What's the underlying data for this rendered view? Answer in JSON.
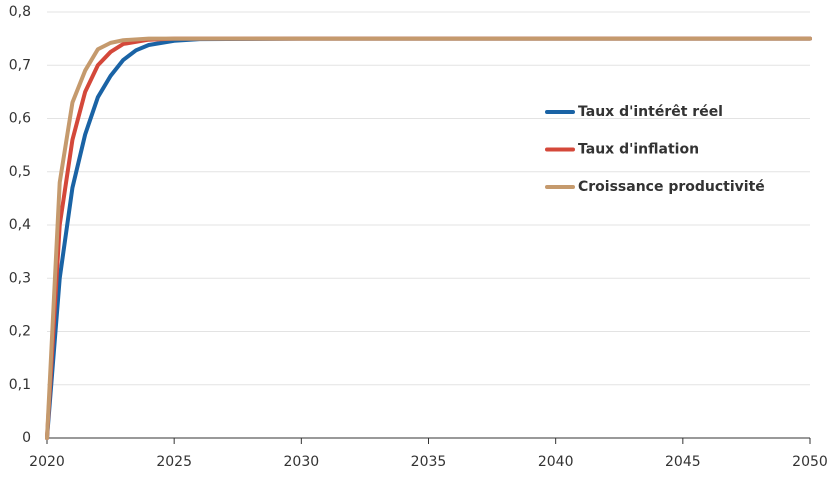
{
  "chart_data": {
    "type": "line",
    "series": [
      {
        "name": "Taux d'intérêt réel",
        "color": "#1a63a5",
        "x": [
          2020,
          2020.5,
          2021,
          2021.5,
          2022,
          2022.5,
          2023,
          2023.5,
          2024,
          2025,
          2026,
          2030,
          2050
        ],
        "values": [
          0,
          0.3,
          0.47,
          0.57,
          0.64,
          0.68,
          0.71,
          0.728,
          0.738,
          0.746,
          0.749,
          0.75,
          0.75
        ]
      },
      {
        "name": "Taux d'inflation",
        "color": "#d4483a",
        "x": [
          2020,
          2020.5,
          2021,
          2021.5,
          2022,
          2022.5,
          2023,
          2024,
          2025,
          2030,
          2050
        ],
        "values": [
          0,
          0.4,
          0.56,
          0.65,
          0.7,
          0.725,
          0.74,
          0.748,
          0.75,
          0.75,
          0.75
        ]
      },
      {
        "name": "Croissance productivité",
        "color": "#c59a6d",
        "x": [
          2020,
          2020.5,
          2021,
          2021.5,
          2022,
          2022.5,
          2023,
          2024,
          2030,
          2050
        ],
        "values": [
          0,
          0.48,
          0.63,
          0.69,
          0.73,
          0.742,
          0.747,
          0.75,
          0.75,
          0.75
        ]
      }
    ],
    "xlim": [
      2020,
      2050
    ],
    "xticks": [
      2020,
      2025,
      2030,
      2035,
      2040,
      2045,
      2050
    ],
    "ylim": [
      0,
      0.8
    ],
    "yticks": [
      0,
      {
        "value": 0.1,
        "label": "0,1"
      },
      {
        "value": 0.2,
        "label": "0,2"
      },
      {
        "value": 0.3,
        "label": "0,3"
      },
      {
        "value": 0.4,
        "label": "0,4"
      },
      {
        "value": 0.5,
        "label": "0,5"
      },
      {
        "value": 0.6,
        "label": "0,6"
      },
      {
        "value": 0.7,
        "label": "0,7"
      },
      {
        "value": 0.8,
        "label": "0,8"
      }
    ],
    "grid": true,
    "legend": "right"
  }
}
